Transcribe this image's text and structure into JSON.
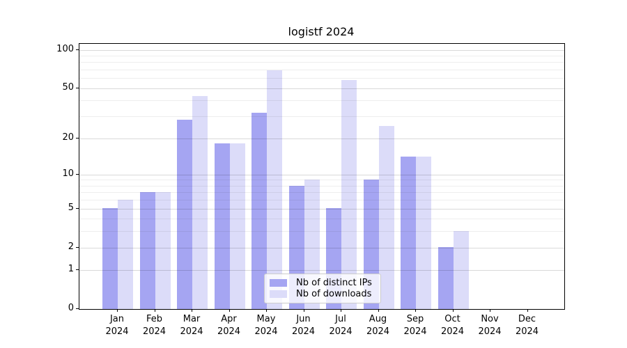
{
  "chart_data": {
    "type": "bar",
    "title": "logistf 2024",
    "categories": [
      "Jan\n2024",
      "Feb\n2024",
      "Mar\n2024",
      "Apr\n2024",
      "May\n2024",
      "Jun\n2024",
      "Jul\n2024",
      "Aug\n2024",
      "Sep\n2024",
      "Oct\n2024",
      "Nov\n2024",
      "Dec\n2024"
    ],
    "series": [
      {
        "name": "Nb of distinct IPs",
        "color": "#a5a5f2",
        "values": [
          5,
          7,
          28,
          18,
          32,
          8,
          5,
          9,
          14,
          2,
          0,
          0
        ]
      },
      {
        "name": "Nb of downloads",
        "color": "#dcdcf9",
        "values": [
          6,
          7,
          43,
          18,
          69,
          9,
          58,
          25,
          14,
          3,
          0,
          0
        ]
      }
    ],
    "xlabel": "",
    "ylabel": "",
    "yscale": "log1p",
    "yticks": [
      0,
      1,
      2,
      5,
      10,
      20,
      50,
      100
    ],
    "yticks_minor": [
      3,
      4,
      6,
      7,
      8,
      9,
      30,
      40,
      60,
      70,
      80,
      90
    ],
    "ylim": [
      0,
      112
    ],
    "grid": true,
    "legend_position": "lower center"
  }
}
